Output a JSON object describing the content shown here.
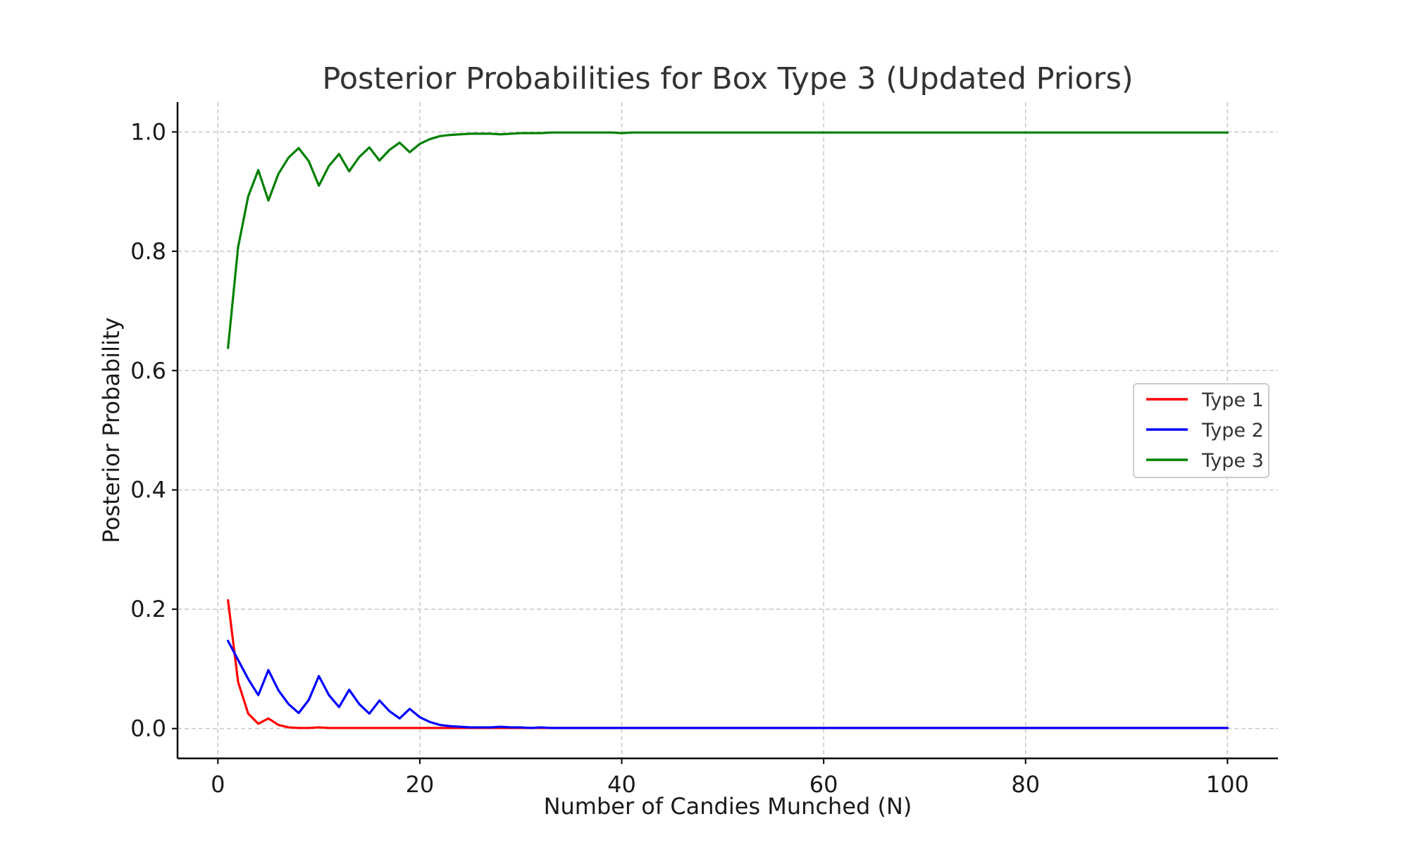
{
  "chart_data": {
    "type": "line",
    "title": "Posterior Probabilities for Box Type 3 (Updated Priors)",
    "xlabel": "Number of Candies Munched (N)",
    "ylabel": "Posterior Probability",
    "xlim": [
      -4,
      105
    ],
    "ylim": [
      -0.05,
      1.05
    ],
    "xticks": [
      0,
      20,
      40,
      60,
      80,
      100
    ],
    "xtick_labels": [
      "0",
      "20",
      "40",
      "60",
      "80",
      "100"
    ],
    "yticks": [
      0.0,
      0.2,
      0.4,
      0.6,
      0.8,
      1.0
    ],
    "ytick_labels": [
      "0.0",
      "0.2",
      "0.4",
      "0.6",
      "0.8",
      "1.0"
    ],
    "grid": true,
    "legend_position": "center-right",
    "x": [
      1,
      2,
      3,
      4,
      5,
      6,
      7,
      8,
      9,
      10,
      11,
      12,
      13,
      14,
      15,
      16,
      17,
      18,
      19,
      20,
      21,
      22,
      23,
      24,
      25,
      26,
      27,
      28,
      29,
      30,
      31,
      32,
      33,
      34,
      35,
      36,
      37,
      38,
      39,
      40,
      41,
      42,
      43,
      44,
      45,
      46,
      47,
      48,
      49,
      50,
      51,
      52,
      53,
      54,
      55,
      56,
      57,
      58,
      59,
      60,
      61,
      62,
      63,
      64,
      65,
      66,
      67,
      68,
      69,
      70,
      71,
      72,
      73,
      74,
      75,
      76,
      77,
      78,
      79,
      80,
      81,
      82,
      83,
      84,
      85,
      86,
      87,
      88,
      89,
      90,
      91,
      92,
      93,
      94,
      95,
      96,
      97,
      98,
      99,
      100
    ],
    "series": [
      {
        "name": "Type 1",
        "color": "#ff0000",
        "values": [
          0.215,
          0.078,
          0.025,
          0.008,
          0.017,
          0.006,
          0.002,
          0.001,
          0.001,
          0.002,
          0.001,
          0.001,
          0.001,
          0.001,
          0.001,
          0.001,
          0.001,
          0.001,
          0.001,
          0.001,
          0.001,
          0.001,
          0.001,
          0.001,
          0.001,
          0.001,
          0.001,
          0.001,
          0.001,
          0.001,
          0.001,
          0.001,
          0.001,
          0.001,
          0.001,
          0.001,
          0.001,
          0.001,
          0.001,
          0.001,
          0.001,
          0.001,
          0.001,
          0.001,
          0.001,
          0.001,
          0.001,
          0.001,
          0.001,
          0.001,
          0.001,
          0.001,
          0.001,
          0.001,
          0.001,
          0.001,
          0.001,
          0.001,
          0.001,
          0.001,
          0.001,
          0.001,
          0.001,
          0.001,
          0.001,
          0.001,
          0.001,
          0.001,
          0.001,
          0.001,
          0.001,
          0.001,
          0.001,
          0.001,
          0.001,
          0.001,
          0.001,
          0.001,
          0.001,
          0.001,
          0.001,
          0.001,
          0.001,
          0.001,
          0.001,
          0.001,
          0.001,
          0.001,
          0.001,
          0.001,
          0.001,
          0.001,
          0.001,
          0.001,
          0.001,
          0.001,
          0.001,
          0.001,
          0.001,
          0.001
        ]
      },
      {
        "name": "Type 2",
        "color": "#0000ff",
        "values": [
          0.147,
          0.115,
          0.083,
          0.056,
          0.098,
          0.064,
          0.041,
          0.026,
          0.048,
          0.088,
          0.056,
          0.036,
          0.065,
          0.041,
          0.025,
          0.047,
          0.029,
          0.017,
          0.033,
          0.019,
          0.011,
          0.006,
          0.004,
          0.003,
          0.002,
          0.002,
          0.002,
          0.003,
          0.002,
          0.002,
          0.001,
          0.002,
          0.001,
          0.001,
          0.001,
          0.001,
          0.001,
          0.001,
          0.001,
          0.001,
          0.001,
          0.001,
          0.001,
          0.001,
          0.001,
          0.001,
          0.001,
          0.001,
          0.001,
          0.001,
          0.001,
          0.001,
          0.001,
          0.001,
          0.001,
          0.001,
          0.001,
          0.001,
          0.001,
          0.001,
          0.001,
          0.001,
          0.001,
          0.001,
          0.001,
          0.001,
          0.001,
          0.001,
          0.001,
          0.001,
          0.001,
          0.001,
          0.001,
          0.001,
          0.001,
          0.001,
          0.001,
          0.001,
          0.001,
          0.001,
          0.001,
          0.001,
          0.001,
          0.001,
          0.001,
          0.001,
          0.001,
          0.001,
          0.001,
          0.001,
          0.001,
          0.001,
          0.001,
          0.001,
          0.001,
          0.001,
          0.001,
          0.001,
          0.001,
          0.001
        ]
      },
      {
        "name": "Type 3",
        "color": "#008000",
        "values": [
          0.638,
          0.807,
          0.892,
          0.936,
          0.885,
          0.93,
          0.957,
          0.973,
          0.951,
          0.91,
          0.943,
          0.963,
          0.934,
          0.958,
          0.974,
          0.952,
          0.97,
          0.982,
          0.966,
          0.98,
          0.988,
          0.993,
          0.995,
          0.996,
          0.997,
          0.997,
          0.997,
          0.996,
          0.997,
          0.998,
          0.998,
          0.998,
          0.999,
          0.999,
          0.999,
          0.999,
          0.999,
          0.999,
          0.999,
          0.998,
          0.999,
          0.999,
          0.999,
          0.999,
          0.999,
          0.999,
          0.999,
          0.999,
          0.999,
          0.999,
          0.999,
          0.999,
          0.999,
          0.999,
          0.999,
          0.999,
          0.999,
          0.999,
          0.999,
          0.999,
          0.999,
          0.999,
          0.999,
          0.999,
          0.999,
          0.999,
          0.999,
          0.999,
          0.999,
          0.999,
          0.999,
          0.999,
          0.999,
          0.999,
          0.999,
          0.999,
          0.999,
          0.999,
          0.999,
          0.999,
          0.999,
          0.999,
          0.999,
          0.999,
          0.999,
          0.999,
          0.999,
          0.999,
          0.999,
          0.999,
          0.999,
          0.999,
          0.999,
          0.999,
          0.999,
          0.999,
          0.999,
          0.999,
          0.999,
          0.999
        ]
      }
    ]
  }
}
